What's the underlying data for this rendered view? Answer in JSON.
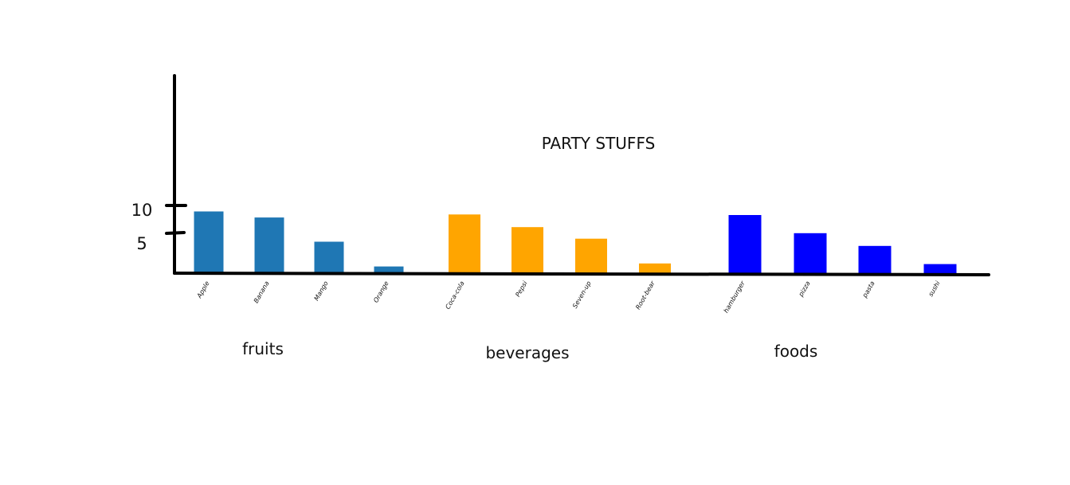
{
  "chart_data": {
    "type": "bar",
    "title": "PARTY STUFFS",
    "xlabel": "",
    "ylabel": "",
    "ylim": [
      0,
      10
    ],
    "yticks": [
      {
        "value": 10,
        "label": "10"
      },
      {
        "value": 5,
        "label": "5"
      }
    ],
    "grid": false,
    "groups": [
      {
        "name": "fruits",
        "color": "#1f77b4",
        "categories": [
          "Apple",
          "Banana",
          "Mango",
          "Orange"
        ],
        "values": [
          10.2,
          9.2,
          5.2,
          1.1
        ]
      },
      {
        "name": "beverages",
        "color": "#ffa500",
        "categories": [
          "Coca-cola",
          "Pepsi",
          "Seven-up",
          "Root-bear"
        ],
        "values": [
          9.7,
          7.6,
          5.7,
          1.6
        ]
      },
      {
        "name": "foods",
        "color": "#0000ff",
        "categories": [
          "hamburger",
          "pizza",
          "pasta",
          "sushi"
        ],
        "values": [
          9.6,
          6.6,
          4.5,
          1.5
        ]
      }
    ]
  }
}
